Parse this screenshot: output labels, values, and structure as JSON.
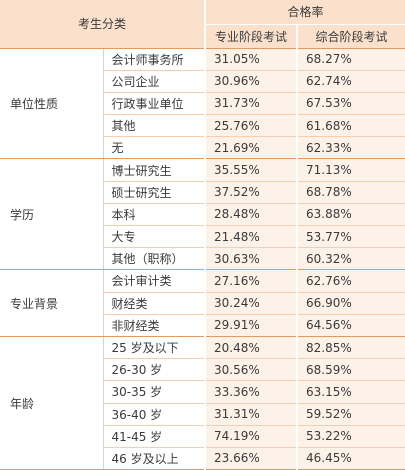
{
  "header": {
    "category": "考生分类",
    "pass_rate": "合格率",
    "professional": "专业阶段考试",
    "comprehensive": "综合阶段考试"
  },
  "groups": [
    {
      "name": "单位性质",
      "rows": [
        [
          "会计师事务所",
          "31.05%",
          "68.27%"
        ],
        [
          "公司企业",
          "30.96%",
          "62.74%"
        ],
        [
          "行政事业单位",
          "31.73%",
          "67.53%"
        ],
        [
          "其他",
          "25.76%",
          "61.68%"
        ],
        [
          "无",
          "21.69%",
          "62.33%"
        ]
      ]
    },
    {
      "name": "学历",
      "rows": [
        [
          "博士研究生",
          "35.55%",
          "71.13%"
        ],
        [
          "硕士研究生",
          "37.52%",
          "68.78%"
        ],
        [
          "本科",
          "28.48%",
          "63.88%"
        ],
        [
          "大专",
          "21.48%",
          "53.77%"
        ],
        [
          "其他（职称）",
          "30.63%",
          "60.32%"
        ]
      ]
    },
    {
      "name": "专业背景",
      "rows": [
        [
          "会计审计类",
          "27.16%",
          "62.76%"
        ],
        [
          "财经类",
          "30.24%",
          "66.90%"
        ],
        [
          "非财经类",
          "29.91%",
          "64.56%"
        ]
      ]
    },
    {
      "name": "年龄",
      "rows": [
        [
          "25 岁及以下",
          "20.48%",
          "82.85%"
        ],
        [
          "26-30 岁",
          "30.56%",
          "68.59%"
        ],
        [
          "30-35 岁",
          "33.36%",
          "63.15%"
        ],
        [
          "36-40 岁",
          "31.31%",
          "59.52%"
        ],
        [
          "41-45 岁",
          "74.19%",
          "53.22%"
        ],
        [
          "46 岁及以上",
          "23.66%",
          "46.45%"
        ]
      ]
    }
  ]
}
